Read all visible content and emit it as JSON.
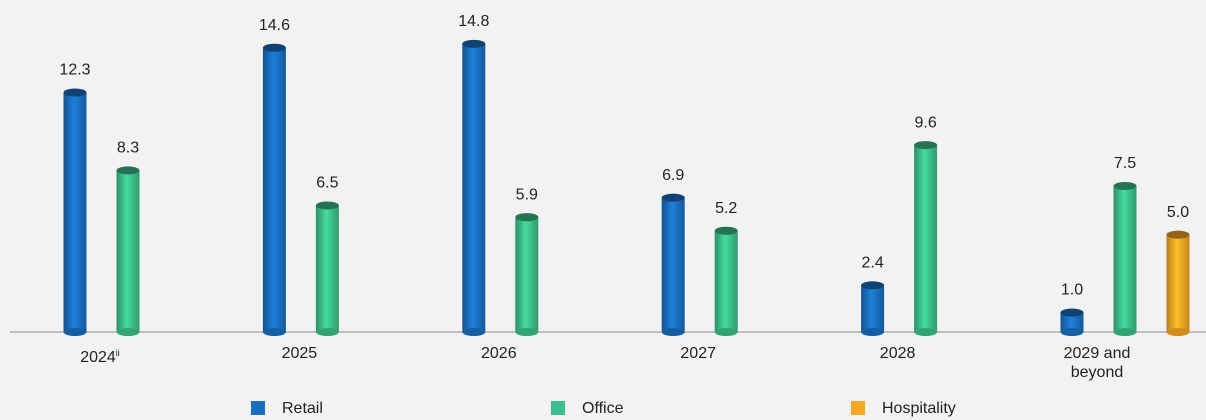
{
  "chart_data": {
    "type": "bar",
    "categories": [
      "2024",
      "2025",
      "2026",
      "2027",
      "2028",
      "2029 and beyond"
    ],
    "category_superscripts": [
      "ii",
      null,
      null,
      null,
      null,
      null
    ],
    "series": [
      {
        "name": "Retail",
        "color": "#1a6fbf",
        "values": [
          12.3,
          14.6,
          14.8,
          6.9,
          2.4,
          1.0
        ],
        "value_labels": [
          "12.3",
          "14.6",
          "14.8",
          "6.9",
          "2.4",
          "1.0"
        ]
      },
      {
        "name": "Office",
        "color": "#3cbf8a",
        "values": [
          8.3,
          6.5,
          5.9,
          5.2,
          9.6,
          7.5
        ],
        "value_labels": [
          "8.3",
          "6.5",
          "5.9",
          "5.2",
          "9.6",
          "7.5"
        ]
      },
      {
        "name": "Hospitality",
        "color": "#f5a623",
        "values": [
          null,
          null,
          null,
          null,
          null,
          5.0
        ],
        "value_labels": [
          null,
          null,
          null,
          null,
          null,
          "5.0"
        ]
      }
    ],
    "ylim": [
      0,
      17
    ],
    "legend": "bottom"
  }
}
